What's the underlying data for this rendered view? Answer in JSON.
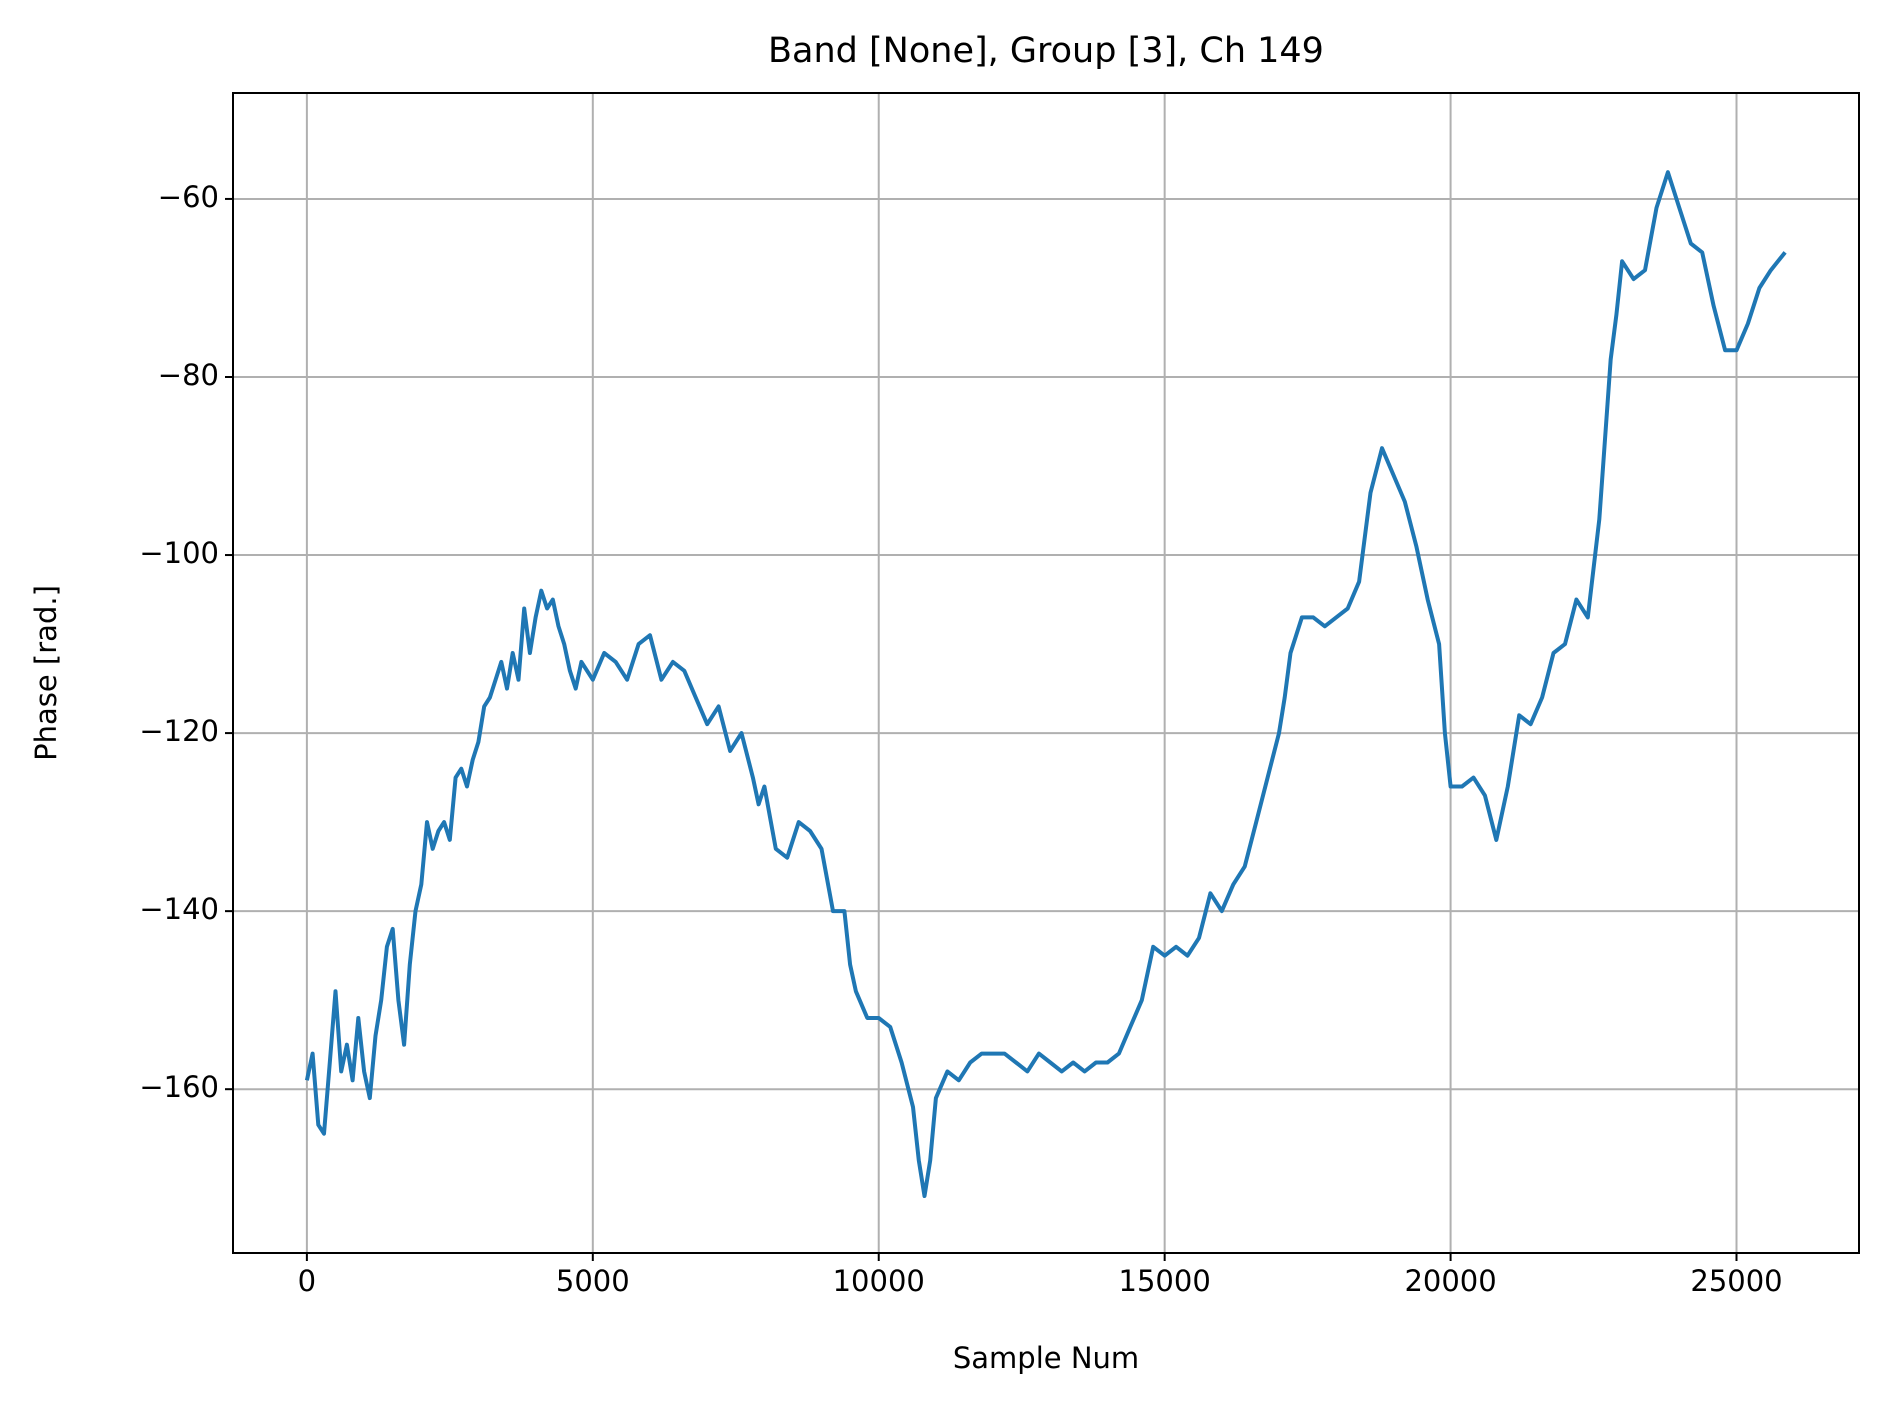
{
  "chart_data": {
    "type": "line",
    "title": "Band [None], Group [3], Ch 149",
    "xlabel": "Sample Num",
    "ylabel": "Phase [rad.]",
    "xlim": [
      -1292,
      27142
    ],
    "ylim": [
      -178.4,
      -48.1
    ],
    "xticks": [
      0,
      5000,
      10000,
      15000,
      20000,
      25000
    ],
    "yticks": [
      {
        "value": -160,
        "label": "−160"
      },
      {
        "value": -140,
        "label": "−140"
      },
      {
        "value": -120,
        "label": "−120"
      },
      {
        "value": -100,
        "label": "−100"
      },
      {
        "value": -80,
        "label": "−80"
      },
      {
        "value": -60,
        "label": "−60"
      }
    ],
    "grid": true,
    "series": [
      {
        "color": "#1f77b4",
        "x": [
          0,
          100,
          200,
          300,
          400,
          500,
          600,
          700,
          800,
          900,
          1000,
          1100,
          1200,
          1300,
          1400,
          1500,
          1600,
          1700,
          1800,
          1900,
          2000,
          2100,
          2200,
          2300,
          2400,
          2500,
          2600,
          2700,
          2800,
          2900,
          3000,
          3100,
          3200,
          3300,
          3400,
          3500,
          3600,
          3700,
          3800,
          3900,
          4000,
          4100,
          4200,
          4300,
          4400,
          4500,
          4600,
          4700,
          4800,
          4900,
          5000,
          5200,
          5400,
          5600,
          5800,
          6000,
          6200,
          6400,
          6600,
          6800,
          7000,
          7200,
          7400,
          7600,
          7800,
          7900,
          8000,
          8200,
          8400,
          8600,
          8800,
          9000,
          9200,
          9400,
          9500,
          9600,
          9800,
          10000,
          10200,
          10400,
          10600,
          10700,
          10800,
          10900,
          11000,
          11200,
          11400,
          11600,
          11800,
          12000,
          12200,
          12400,
          12600,
          12800,
          13000,
          13200,
          13400,
          13600,
          13800,
          14000,
          14200,
          14400,
          14600,
          14800,
          15000,
          15200,
          15400,
          15600,
          15800,
          16000,
          16200,
          16400,
          16600,
          16800,
          17000,
          17100,
          17200,
          17400,
          17600,
          17800,
          18000,
          18200,
          18400,
          18600,
          18800,
          19000,
          19200,
          19400,
          19600,
          19800,
          19900,
          20000,
          20200,
          20400,
          20600,
          20800,
          21000,
          21200,
          21400,
          21600,
          21800,
          22000,
          22200,
          22400,
          22600,
          22800,
          22900,
          23000,
          23200,
          23400,
          23600,
          23800,
          24000,
          24200,
          24400,
          24600,
          24800,
          25000,
          25200,
          25400,
          25600,
          25850
        ],
        "values": [
          -159,
          -156,
          -164,
          -165,
          -157,
          -149,
          -158,
          -155,
          -159,
          -152,
          -158,
          -161,
          -154,
          -150,
          -144,
          -142,
          -150,
          -155,
          -146,
          -140,
          -137,
          -130,
          -133,
          -131,
          -130,
          -132,
          -125,
          -124,
          -126,
          -123,
          -121,
          -117,
          -116,
          -114,
          -112,
          -115,
          -111,
          -114,
          -106,
          -111,
          -107,
          -104,
          -106,
          -105,
          -108,
          -110,
          -113,
          -115,
          -112,
          -113,
          -114,
          -111,
          -112,
          -114,
          -110,
          -109,
          -114,
          -112,
          -113,
          -116,
          -119,
          -117,
          -122,
          -120,
          -125,
          -128,
          -126,
          -133,
          -134,
          -130,
          -131,
          -133,
          -140,
          -140,
          -146,
          -149,
          -152,
          -152,
          -153,
          -157,
          -162,
          -168,
          -172,
          -168,
          -161,
          -158,
          -159,
          -157,
          -156,
          -156,
          -156,
          -157,
          -158,
          -156,
          -157,
          -158,
          -157,
          -158,
          -157,
          -157,
          -156,
          -153,
          -150,
          -144,
          -145,
          -144,
          -145,
          -143,
          -138,
          -140,
          -137,
          -135,
          -130,
          -125,
          -120,
          -116,
          -111,
          -107,
          -107,
          -108,
          -107,
          -106,
          -103,
          -93,
          -88,
          -91,
          -94,
          -99,
          -105,
          -110,
          -120,
          -126,
          -126,
          -125,
          -127,
          -132,
          -126,
          -118,
          -119,
          -116,
          -111,
          -110,
          -105,
          -107,
          -96,
          -78,
          -73,
          -67,
          -69,
          -68,
          -61,
          -57,
          -61,
          -65,
          -66,
          -72,
          -77,
          -77,
          -74,
          -70,
          -68,
          -66
        ]
      }
    ]
  }
}
